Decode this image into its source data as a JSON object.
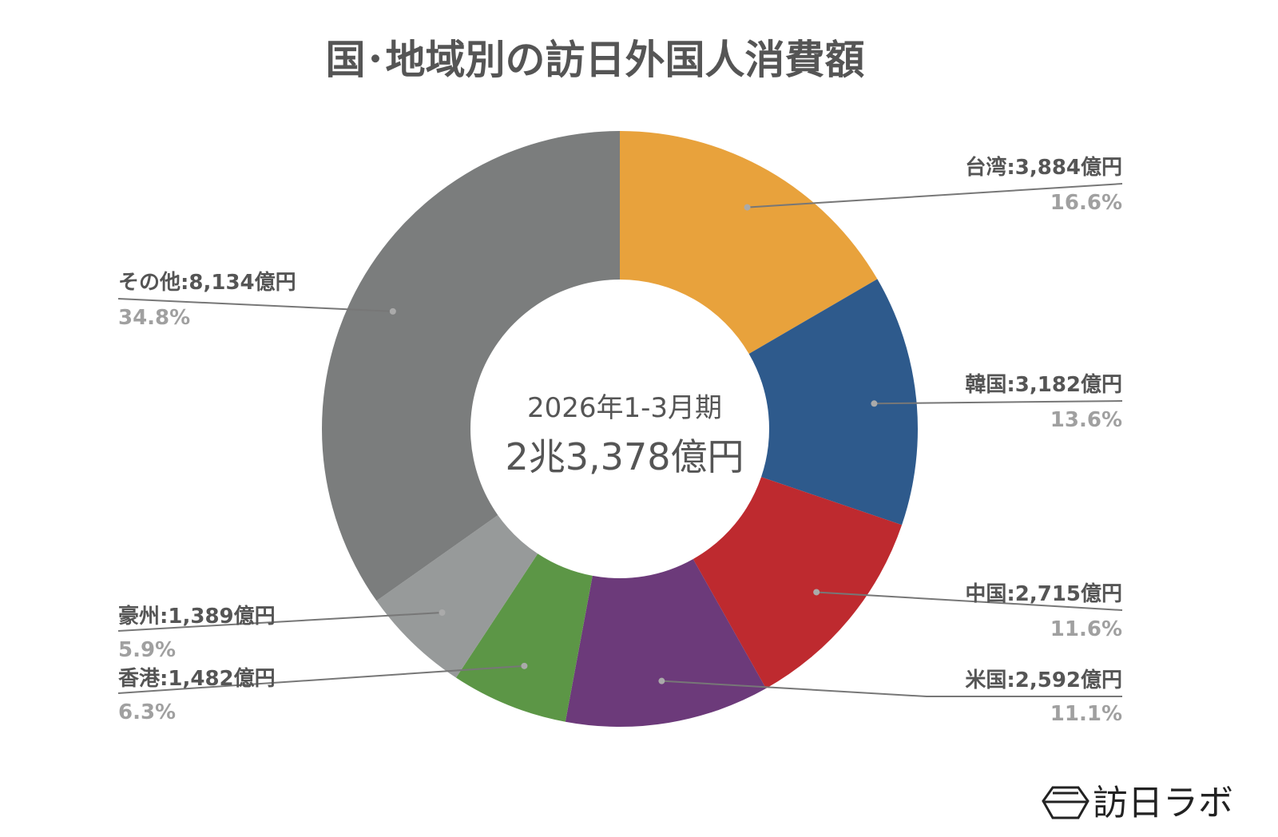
{
  "chart_data": {
    "type": "pie",
    "subtype": "donut",
    "title": "国･地域別の訪日外国人消費額",
    "center_text": {
      "period": "2026年1-3月期",
      "total": "2兆3,378億円"
    },
    "unit": "億円",
    "slices": [
      {
        "name": "台湾",
        "value": 3884,
        "label": "台湾:3,884億円",
        "percent": "16.6%",
        "color": "#E8A23C"
      },
      {
        "name": "韓国",
        "value": 3182,
        "label": "韓国:3,182億円",
        "percent": "13.6%",
        "color": "#2E5A8C"
      },
      {
        "name": "中国",
        "value": 2715,
        "label": "中国:2,715億円",
        "percent": "11.6%",
        "color": "#BE2A2F"
      },
      {
        "name": "米国",
        "value": 2592,
        "label": "米国:2,592億円",
        "percent": "11.1%",
        "color": "#6C3A7A"
      },
      {
        "name": "香港",
        "value": 1482,
        "label": "香港:1,482億円",
        "percent": "6.3%",
        "color": "#5C9646"
      },
      {
        "name": "豪州",
        "value": 1389,
        "label": "豪州:1,389億円",
        "percent": "5.9%",
        "color": "#979A9A"
      },
      {
        "name": "その他",
        "value": 8134,
        "label": "その他:8,134億円",
        "percent": "34.8%",
        "color": "#7B7D7D"
      }
    ],
    "start_angle": "12 o'clock",
    "direction": "clockwise"
  },
  "logo": {
    "text": "訪日ラボ"
  }
}
